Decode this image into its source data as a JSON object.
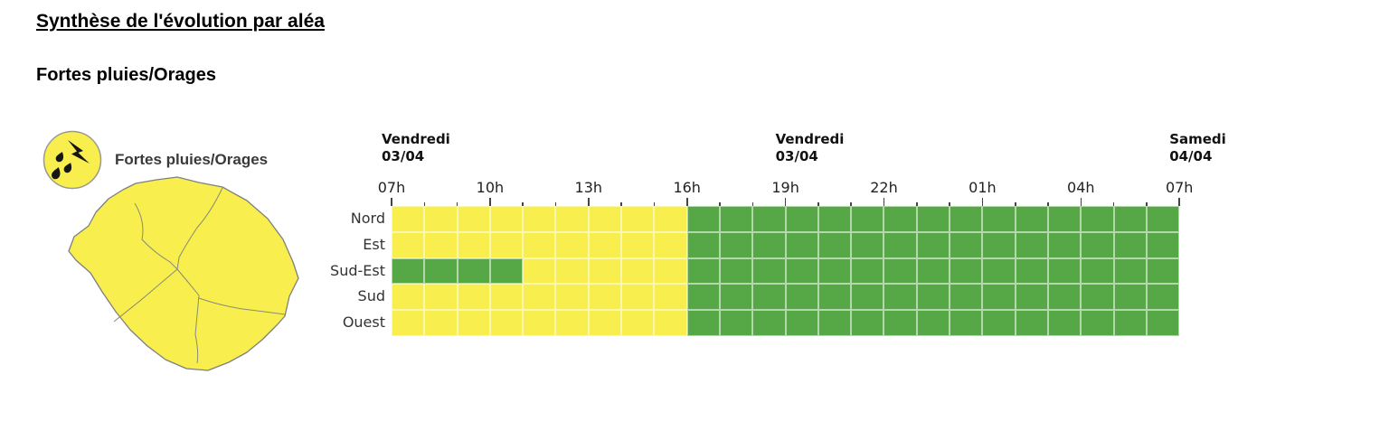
{
  "page": {
    "title": "Synthèse de l'évolution par aléa",
    "subtitle": "Fortes pluies/Orages"
  },
  "legend": {
    "label": "Fortes pluies/Orages",
    "icon": "rain-lightning-icon"
  },
  "colors": {
    "vigilance_yellow": "#F8EE4D",
    "vigilance_green": "#56A847",
    "grid_line": "rgba(255,255,255,0.55)",
    "tick": "#444444",
    "map_border": "#8A8A78",
    "coast_border": "#7F7F7F",
    "text": "#333333"
  },
  "chart_data": {
    "type": "heatmap",
    "x_axis": {
      "start_label": "Vendredi 03/04 07h",
      "end_label": "Samedi 04/04 07h",
      "hours_total": 24,
      "tick_interval_hours": 3,
      "tick_labels": [
        {
          "label": "07h",
          "hour": 0
        },
        {
          "label": "10h",
          "hour": 3
        },
        {
          "label": "13h",
          "hour": 6
        },
        {
          "label": "16h",
          "hour": 9
        },
        {
          "label": "19h",
          "hour": 12
        },
        {
          "label": "22h",
          "hour": 15
        },
        {
          "label": "01h",
          "hour": 18
        },
        {
          "label": "04h",
          "hour": 21
        },
        {
          "label": "07h",
          "hour": 24
        }
      ],
      "date_labels": [
        {
          "line1": "Vendredi",
          "line2": "03/04",
          "hour": 0
        },
        {
          "line1": "Vendredi",
          "line2": "03/04",
          "hour": 12
        },
        {
          "line1": "Samedi",
          "line2": "04/04",
          "hour": 24
        }
      ]
    },
    "levels": {
      "y": "#F8EE4D",
      "g": "#56A847"
    },
    "rows": [
      {
        "label": "Nord",
        "cells": "yyyyyyyyyggggggggggggggg"
      },
      {
        "label": "Est",
        "cells": "yyyyyyyyyggggggggggggggg"
      },
      {
        "label": "Sud-Est",
        "cells": "ggggyyyyyggggggggggggggg"
      },
      {
        "label": "Sud",
        "cells": "yyyyyyyyyggggggggggggggg"
      },
      {
        "label": "Ouest",
        "cells": "yyyyyyyyyggggggggggggggg"
      }
    ]
  }
}
